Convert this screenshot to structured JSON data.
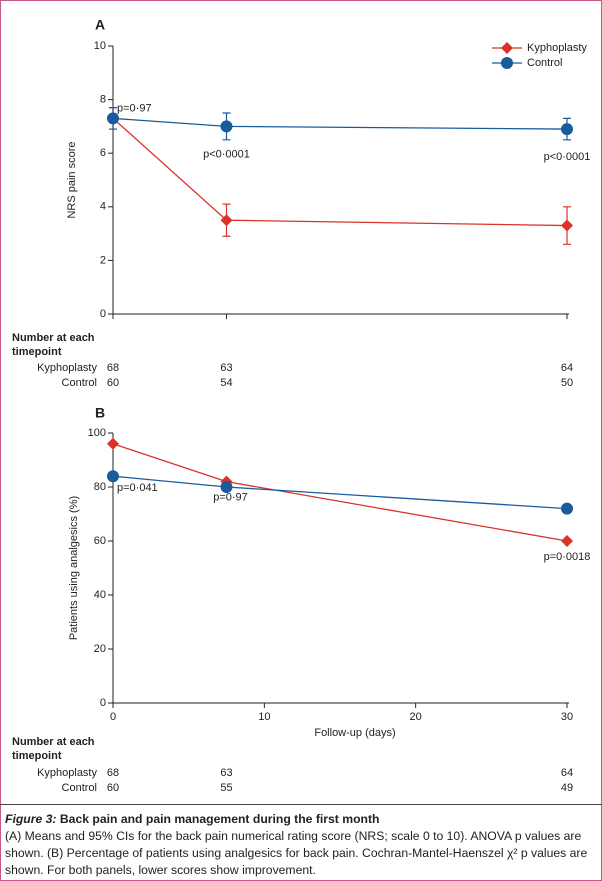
{
  "chart_data": [
    {
      "type": "line",
      "panel": "A",
      "ylabel": "NRS pain score",
      "x": [
        0,
        7.5,
        30
      ],
      "xlim": [
        0,
        30
      ],
      "ylim": [
        0,
        10
      ],
      "yticks": [
        0,
        2,
        4,
        6,
        8,
        10
      ],
      "legend": "upper right",
      "series": [
        {
          "name": "Kyphoplasty",
          "color": "#d9342b",
          "marker": "diamond",
          "values": [
            7.3,
            3.5,
            3.3
          ],
          "errors": [
            0.4,
            0.6,
            0.7
          ]
        },
        {
          "name": "Control",
          "color": "#1a5b9c",
          "marker": "circle",
          "values": [
            7.3,
            7.0,
            6.9
          ],
          "errors": [
            0.4,
            0.5,
            0.4
          ]
        }
      ],
      "annotations": [
        "p=0·97",
        "p<0·0001",
        "p<0·0001"
      ]
    },
    {
      "type": "line",
      "panel": "B",
      "ylabel": "Patients using analgesics (%)",
      "xlabel": "Follow-up (days)",
      "x": [
        0,
        7.5,
        30
      ],
      "xlim": [
        0,
        30
      ],
      "xticks": [
        0,
        10,
        20,
        30
      ],
      "ylim": [
        0,
        100
      ],
      "yticks": [
        0,
        20,
        40,
        60,
        80,
        100
      ],
      "series": [
        {
          "name": "Kyphoplasty",
          "color": "#d9342b",
          "marker": "diamond",
          "values": [
            96,
            82,
            60
          ]
        },
        {
          "name": "Control",
          "color": "#1a5b9c",
          "marker": "circle",
          "values": [
            84,
            80,
            72
          ]
        }
      ],
      "annotations": [
        "p=0·041",
        "p=0·97",
        "p=0·0018"
      ]
    }
  ],
  "tables": [
    {
      "title": "Number at each timepoint",
      "rows": [
        {
          "label": "Kyphoplasty",
          "values": [
            68,
            63,
            64
          ]
        },
        {
          "label": "Control",
          "values": [
            60,
            54,
            50
          ]
        }
      ]
    },
    {
      "title": "Number at each timepoint",
      "rows": [
        {
          "label": "Kyphoplasty",
          "values": [
            68,
            63,
            64
          ]
        },
        {
          "label": "Control",
          "values": [
            60,
            55,
            49
          ]
        }
      ]
    }
  ],
  "caption": {
    "label": "Figure 3:",
    "title": "Back pain and pain management during the first month",
    "text": "(A) Means and 95% CIs for the back pain numerical rating score (NRS; scale 0 to 10). ANOVA p values are shown. (B) Percentage of patients using analgesics for back pain. Cochran-Mantel-Haenszel χ² p values are shown. For both panels, lower scores show improvement."
  }
}
